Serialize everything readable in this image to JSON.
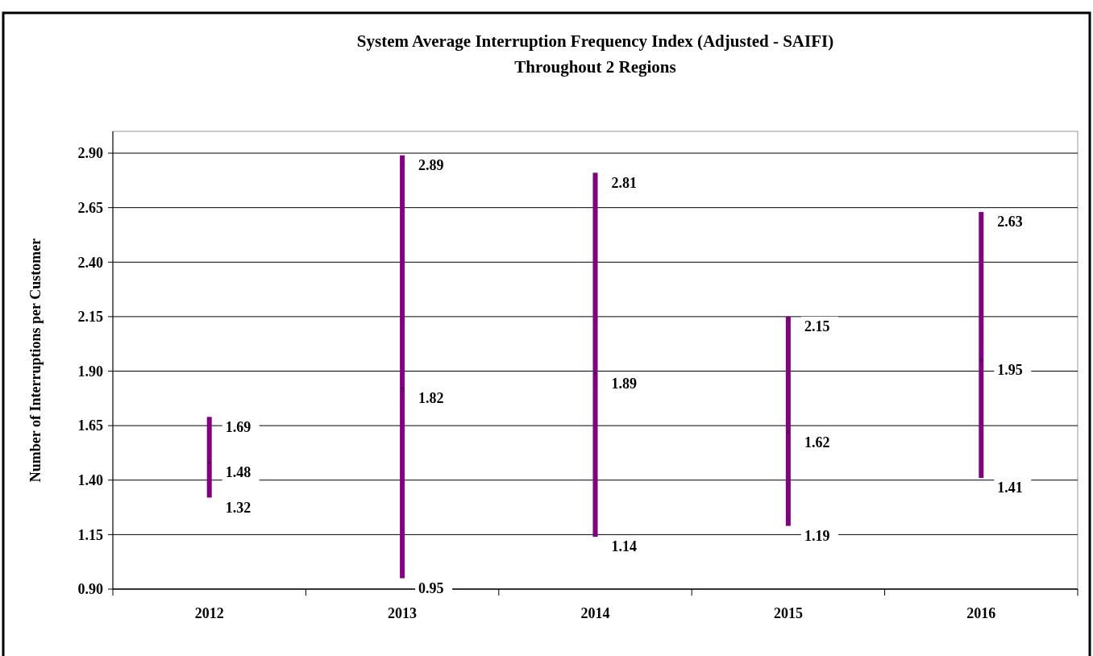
{
  "chart_data": {
    "type": "bar",
    "title": "System Average Interruption Frequency Index (Adjusted - SAIFI)",
    "subtitle": "Throughout 2 Regions",
    "ylabel": "Number  of Interruptions  per Customer",
    "categories": [
      "2012",
      "2013",
      "2014",
      "2015",
      "2016"
    ],
    "series": [
      {
        "color": "#800080",
        "base": [
          1.32,
          0.95,
          1.14,
          1.19,
          1.41
        ],
        "values": [
          0.37,
          1.94,
          1.67,
          0.96,
          1.22
        ]
      },
      {
        "type": "scatter",
        "color": "#3a003a",
        "marker": "square",
        "values": [
          1.48,
          1.82,
          1.89,
          1.62,
          1.95
        ]
      }
    ],
    "ylim": [
      0.9,
      3.0
    ],
    "yticks": [
      {
        "value": 0.9,
        "label": "0.90"
      },
      {
        "value": 1.15,
        "label": "1.15"
      },
      {
        "value": 1.4,
        "label": "1.40"
      },
      {
        "value": 1.65,
        "label": "1.65"
      },
      {
        "value": 1.9,
        "label": "1.90"
      },
      {
        "value": 2.15,
        "label": "2.15"
      },
      {
        "value": 2.4,
        "label": "2.40"
      },
      {
        "value": 2.65,
        "label": "2.65"
      },
      {
        "value": 2.9,
        "label": "2.90"
      }
    ],
    "grid": "y",
    "annotations": [
      {
        "text": "1.69",
        "x": "2012",
        "y": 1.69
      },
      {
        "text": "1.48",
        "x": "2012",
        "y": 1.48
      },
      {
        "text": "1.32",
        "x": "2012",
        "y": 1.32
      },
      {
        "text": "2.89",
        "x": "2013",
        "y": 2.89
      },
      {
        "text": "1.82",
        "x": "2013",
        "y": 1.82
      },
      {
        "text": "0.95",
        "x": "2013",
        "y": 0.95
      },
      {
        "text": "2.81",
        "x": "2014",
        "y": 2.81
      },
      {
        "text": "1.89",
        "x": "2014",
        "y": 1.89
      },
      {
        "text": "1.14",
        "x": "2014",
        "y": 1.14
      },
      {
        "text": "2.15",
        "x": "2015",
        "y": 2.15
      },
      {
        "text": "1.62",
        "x": "2015",
        "y": 1.62
      },
      {
        "text": "1.19",
        "x": "2015",
        "y": 1.19
      },
      {
        "text": "2.63",
        "x": "2016",
        "y": 2.63
      },
      {
        "text": "1.95",
        "x": "2016",
        "y": 1.95
      },
      {
        "text": "1.41",
        "x": "2016",
        "y": 1.41
      }
    ]
  }
}
